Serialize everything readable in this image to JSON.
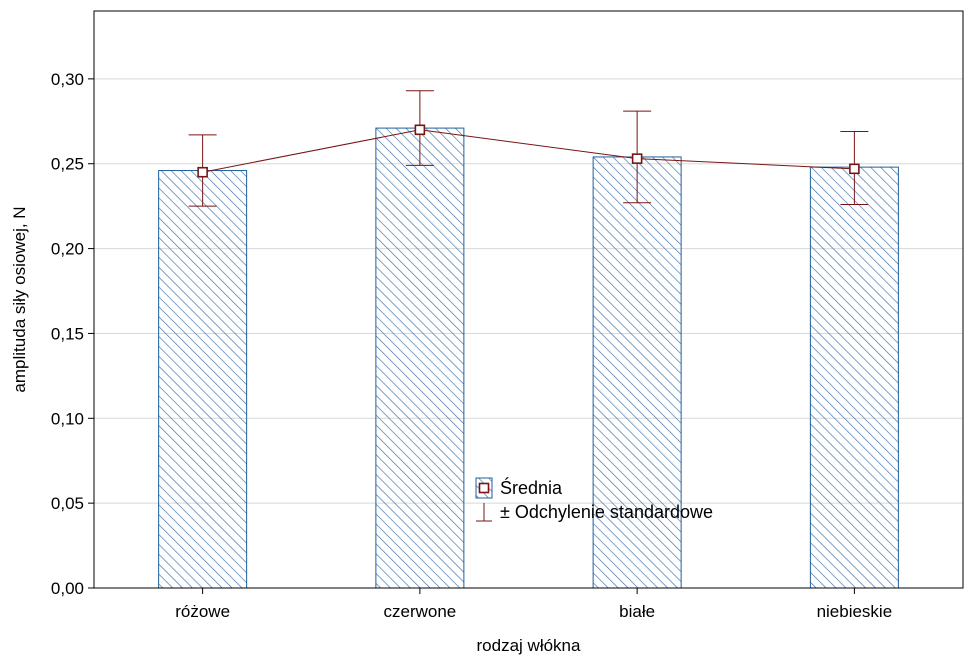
{
  "chart_data": {
    "type": "bar",
    "title": "",
    "xlabel": "rodzaj włókna",
    "ylabel": "amplituda siły osiowej, N",
    "categories": [
      "różowe",
      "czerwone",
      "białe",
      "niebieskie"
    ],
    "series": [
      {
        "name": "Średnia",
        "values": [
          0.246,
          0.271,
          0.254,
          0.248
        ],
        "markers": [
          0.245,
          0.27,
          0.253,
          0.247
        ],
        "error_low": [
          0.225,
          0.249,
          0.227,
          0.226
        ],
        "error_high": [
          0.267,
          0.293,
          0.281,
          0.269
        ]
      }
    ],
    "ylim": [
      0,
      0.34
    ],
    "yticks": [
      0.0,
      0.05,
      0.1,
      0.15,
      0.2,
      0.25,
      0.3
    ],
    "ytick_labels": [
      "0,00",
      "0,05",
      "0,10",
      "0,15",
      "0,20",
      "0,25",
      "0,30"
    ],
    "grid": true,
    "legend": {
      "placement": "center-bottom",
      "entries": [
        "Średnia",
        "± Odchylenie standardowe"
      ]
    },
    "colors": {
      "bar_stroke": "#1f5f9f",
      "hatch": "#3a6fa8",
      "line": "#7a1414",
      "grid": "#d8d8d8",
      "axis": "#000000"
    }
  }
}
